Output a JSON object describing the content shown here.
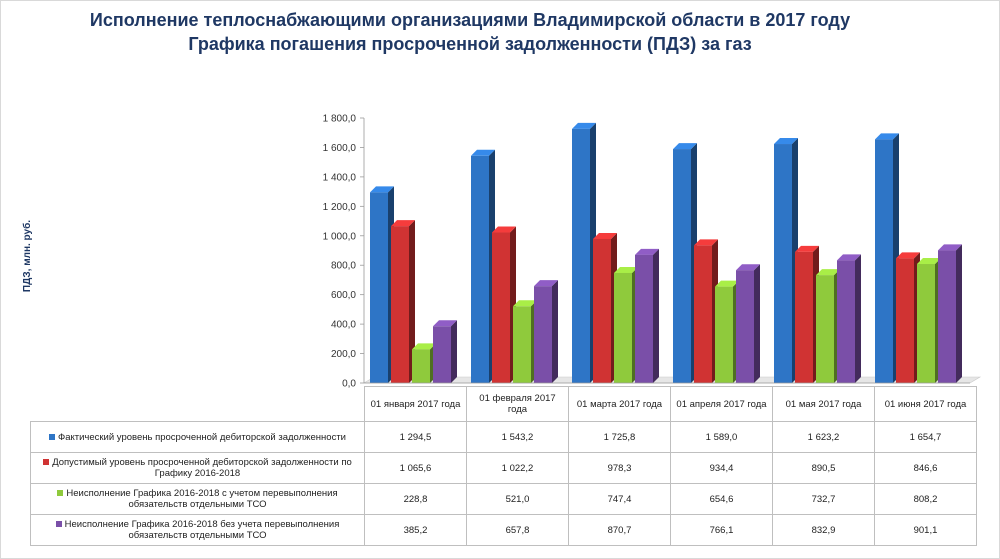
{
  "title_line1": "Исполнение теплоснабжающими организациями Владимирской области в 2017 году",
  "title_line2": "Графика погашения  просроченной задолженности (ПДЗ) за газ",
  "chart_data": {
    "type": "bar",
    "ylabel": "ПДЗ, млн. руб.",
    "ylim": [
      0,
      1800
    ],
    "yticks": [
      "0,0",
      "200,0",
      "400,0",
      "600,0",
      "800,0",
      "1 000,0",
      "1 200,0",
      "1 400,0",
      "1 600,0",
      "1 800,0"
    ],
    "ytick_values": [
      0,
      200,
      400,
      600,
      800,
      1000,
      1200,
      1400,
      1600,
      1800
    ],
    "grid": false,
    "legend": "data-table",
    "categories": [
      "01 января 2017 года",
      "01 февраля 2017 года",
      "01 марта 2017 года",
      "01 апреля 2017 года",
      "01 мая 2017 года",
      "01 июня 2017 года"
    ],
    "series": [
      {
        "name": "Фактический уровень просроченной дебиторской задолженности",
        "color": "#2e75c6",
        "values": [
          1294.5,
          1543.2,
          1725.8,
          1589.0,
          1623.2,
          1654.7
        ],
        "labels": [
          "1 294,5",
          "1 543,2",
          "1 725,8",
          "1 589,0",
          "1 623,2",
          "1 654,7"
        ]
      },
      {
        "name": "Допустимый уровень просроченной дебиторской задолженности по Графику 2016-2018",
        "color": "#d03333",
        "values": [
          1065.6,
          1022.2,
          978.3,
          934.4,
          890.5,
          846.6
        ],
        "labels": [
          "1 065,6",
          "1 022,2",
          "978,3",
          "934,4",
          "890,5",
          "846,6"
        ]
      },
      {
        "name": "Неисполнение Графика 2016-2018 с учетом перевыполнения обязательств отдельными ТСО",
        "color": "#8fca3c",
        "values": [
          228.8,
          521.0,
          747.4,
          654.6,
          732.7,
          808.2
        ],
        "labels": [
          "228,8",
          "521,0",
          "747,4",
          "654,6",
          "732,7",
          "808,2"
        ]
      },
      {
        "name": "Неисполнение Графика 2016-2018 без учета перевыполнения обязательств отдельными ТСО",
        "color": "#7a4fa8",
        "values": [
          385.2,
          657.8,
          870.7,
          766.1,
          832.9,
          901.1
        ],
        "labels": [
          "385,2",
          "657,8",
          "870,7",
          "766,1",
          "832,9",
          "901,1"
        ]
      }
    ]
  }
}
